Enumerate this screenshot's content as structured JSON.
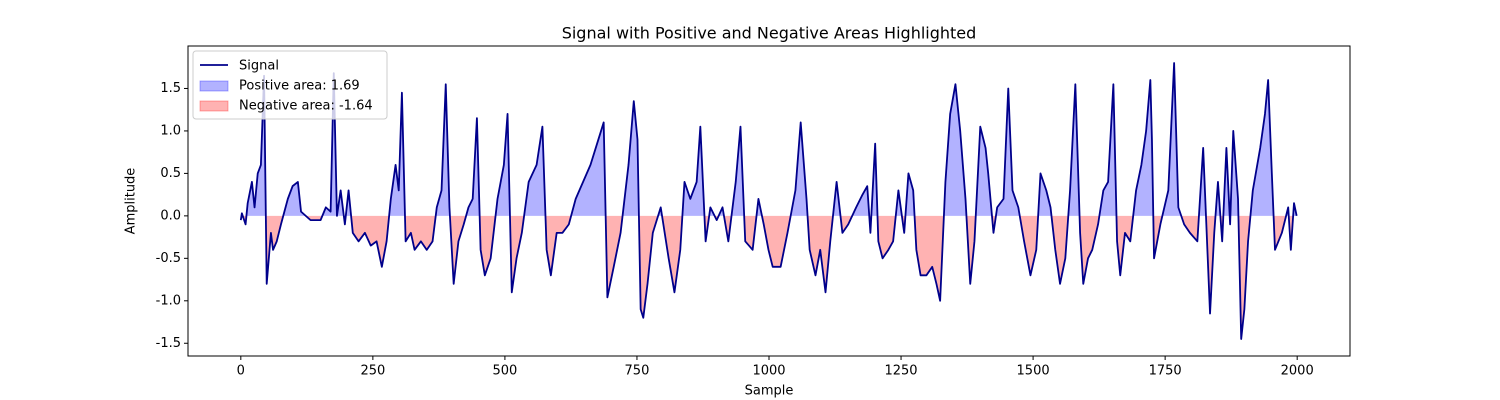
{
  "chart_data": {
    "type": "line",
    "title": "Signal with Positive and Negative Areas Highlighted",
    "x_label": "Sample",
    "y_label": "Amplitude",
    "xlim": [
      -100,
      2100
    ],
    "ylim": [
      -1.65,
      2.0
    ],
    "xticks": [
      0,
      250,
      500,
      750,
      1000,
      1250,
      1500,
      1750,
      2000
    ],
    "yticks": [
      -1.5,
      {
        "value": -1.0,
        "label": "-1.0"
      },
      -0.5,
      {
        "value": 0.0,
        "label": "0.0"
      },
      0.5,
      {
        "value": 1.0,
        "label": "1.0"
      },
      1.5
    ],
    "legend_position": "upper left",
    "fills": [
      {
        "name": "Positive area: 1.69",
        "color": "#0000ff"
      },
      {
        "name": "Negative area: -1.64",
        "color": "#ff0000"
      }
    ],
    "series": [
      {
        "name": "Signal",
        "color": "#00008b",
        "x": [
          0,
          2,
          9,
          13,
          21,
          26,
          32,
          38,
          44,
          49,
          57,
          61,
          68,
          76,
          89,
          98,
          108,
          114,
          132,
          151,
          161,
          170,
          176,
          182,
          189,
          197,
          204,
          212,
          223,
          235,
          246,
          257,
          267,
          276,
          284,
          293,
          299,
          305,
          312,
          322,
          329,
          341,
          352,
          363,
          371,
          380,
          388,
          395,
          403,
          412,
          422,
          431,
          439,
          447,
          454,
          462,
          473,
          486,
          498,
          505,
          513,
          522,
          532,
          545,
          560,
          571,
          579,
          587,
          598,
          609,
          621,
          634,
          662,
          677,
          687,
          694,
          706,
          719,
          734,
          744,
          751,
          757,
          762,
          770,
          780,
          795,
          810,
          821,
          832,
          840,
          851,
          863,
          870,
          880,
          889,
          901,
          912,
          923,
          937,
          946,
          955,
          969,
          980,
          990,
          999,
          1007,
          1022,
          1035,
          1050,
          1060,
          1071,
          1077,
          1088,
          1097,
          1107,
          1116,
          1128,
          1139,
          1150,
          1165,
          1177,
          1186,
          1192,
          1201,
          1207,
          1215,
          1226,
          1235,
          1245,
          1256,
          1264,
          1273,
          1279,
          1287,
          1298,
          1309,
          1317,
          1324,
          1334,
          1343,
          1353,
          1362,
          1372,
          1381,
          1389,
          1400,
          1410,
          1415,
          1425,
          1432,
          1444,
          1453,
          1461,
          1472,
          1483,
          1495,
          1506,
          1514,
          1525,
          1533,
          1542,
          1551,
          1561,
          1570,
          1580,
          1589,
          1595,
          1604,
          1612,
          1623,
          1633,
          1642,
          1652,
          1659,
          1665,
          1674,
          1684,
          1695,
          1705,
          1714,
          1722,
          1725,
          1729,
          1741,
          1756,
          1767,
          1775,
          1786,
          1797,
          1811,
          1822,
          1828,
          1835,
          1843,
          1850,
          1858,
          1866,
          1873,
          1879,
          1888,
          1894,
          1900,
          1907,
          1916,
          1930,
          1939,
          1945,
          1952,
          1958,
          1971,
          1983,
          1988,
          1994,
          1999
        ],
        "values": [
          -0.05,
          0.03,
          -0.1,
          0.15,
          0.4,
          0.1,
          0.5,
          0.6,
          1.65,
          -0.8,
          -0.2,
          -0.4,
          -0.3,
          -0.1,
          0.2,
          0.35,
          0.4,
          0.05,
          -0.05,
          -0.05,
          0.1,
          0.05,
          1.68,
          0,
          0.3,
          -0.1,
          0.3,
          -0.2,
          -0.3,
          -0.2,
          -0.35,
          -0.3,
          -0.6,
          -0.3,
          0.2,
          0.6,
          0.3,
          1.45,
          -0.3,
          -0.2,
          -0.4,
          -0.3,
          -0.4,
          -0.3,
          0.1,
          0.3,
          1.55,
          0.1,
          -0.8,
          -0.3,
          -0.1,
          0.1,
          0.2,
          1.15,
          -0.4,
          -0.7,
          -0.5,
          0.2,
          0.6,
          1.2,
          -0.9,
          -0.5,
          -0.2,
          0.4,
          0.6,
          1.05,
          -0.4,
          -0.7,
          -0.2,
          -0.2,
          -0.1,
          0.2,
          0.6,
          0.9,
          1.1,
          -0.96,
          -0.6,
          -0.2,
          0.6,
          1.35,
          0.9,
          -1.1,
          -1.2,
          -0.8,
          -0.2,
          0.1,
          -0.5,
          -0.9,
          -0.4,
          0.4,
          0.2,
          0.4,
          1.05,
          -0.3,
          0.1,
          -0.05,
          0.1,
          -0.3,
          0.4,
          1.05,
          -0.3,
          -0.4,
          0.2,
          -0.1,
          -0.4,
          -0.6,
          -0.6,
          -0.2,
          0.3,
          1.1,
          0.2,
          -0.4,
          -0.7,
          -0.4,
          -0.9,
          -0.3,
          0.4,
          -0.2,
          -0.1,
          0.1,
          0.25,
          0.35,
          -0.2,
          0.85,
          -0.3,
          -0.5,
          -0.4,
          -0.3,
          0.3,
          -0.2,
          0.5,
          0.3,
          -0.4,
          -0.7,
          -0.7,
          -0.6,
          -0.8,
          -1.0,
          0.4,
          1.2,
          1.55,
          1.0,
          0.2,
          -0.8,
          -0.3,
          1.05,
          0.8,
          0.5,
          -0.2,
          0.1,
          0.2,
          1.5,
          0.3,
          0.1,
          -0.3,
          -0.7,
          -0.4,
          0.5,
          0.3,
          0.1,
          -0.4,
          -0.8,
          -0.5,
          0.3,
          1.55,
          -0.2,
          -0.8,
          -0.5,
          -0.4,
          -0.1,
          0.3,
          0.4,
          1.55,
          -0.3,
          -0.7,
          -0.2,
          -0.3,
          0.3,
          0.6,
          1.0,
          1.6,
          0.9,
          -0.5,
          -0.1,
          0.3,
          1.8,
          0.1,
          -0.1,
          -0.2,
          -0.3,
          0.8,
          -0.1,
          -1.15,
          -0.2,
          0.4,
          -0.3,
          0.8,
          -0.1,
          1.0,
          0.2,
          -1.45,
          -1.1,
          -0.3,
          0.3,
          0.8,
          1.2,
          1.6,
          0.5,
          -0.4,
          -0.2,
          0.1,
          -0.4,
          0.15,
          0.0
        ]
      }
    ]
  }
}
